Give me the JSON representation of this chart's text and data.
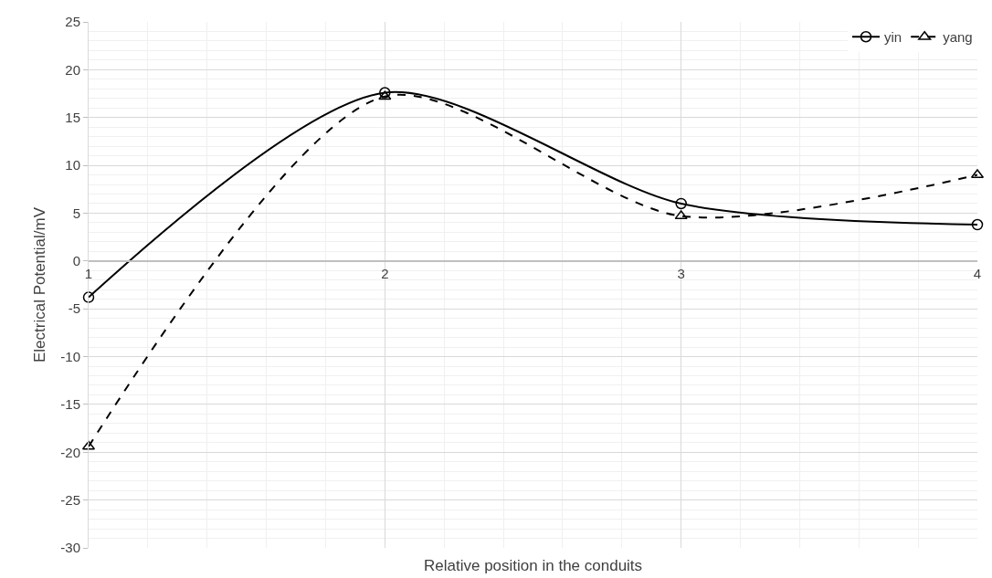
{
  "chart_data": {
    "type": "line",
    "xlabel": "Relative position in the conduits",
    "ylabel": "Electrical Potential/mV",
    "x": [
      1,
      2,
      3,
      4
    ],
    "series": [
      {
        "name": "yin",
        "color": "#000000",
        "values": [
          -3.8,
          17.6,
          6.0,
          3.8
        ],
        "marker": "circle",
        "line_style": "solid"
      },
      {
        "name": "yang",
        "color": "#000000",
        "values": [
          -19.4,
          17.2,
          4.7,
          9.0
        ],
        "marker": "triangle",
        "line_style": "dashed"
      }
    ],
    "xlim": [
      1,
      4
    ],
    "xticks": [
      1,
      2,
      3,
      4
    ],
    "ylim": [
      -30,
      25
    ],
    "yticks": [
      -30,
      -25,
      -20,
      -15,
      -10,
      -5,
      0,
      5,
      10,
      15,
      20,
      25
    ],
    "grid": true,
    "legend": "top right"
  }
}
